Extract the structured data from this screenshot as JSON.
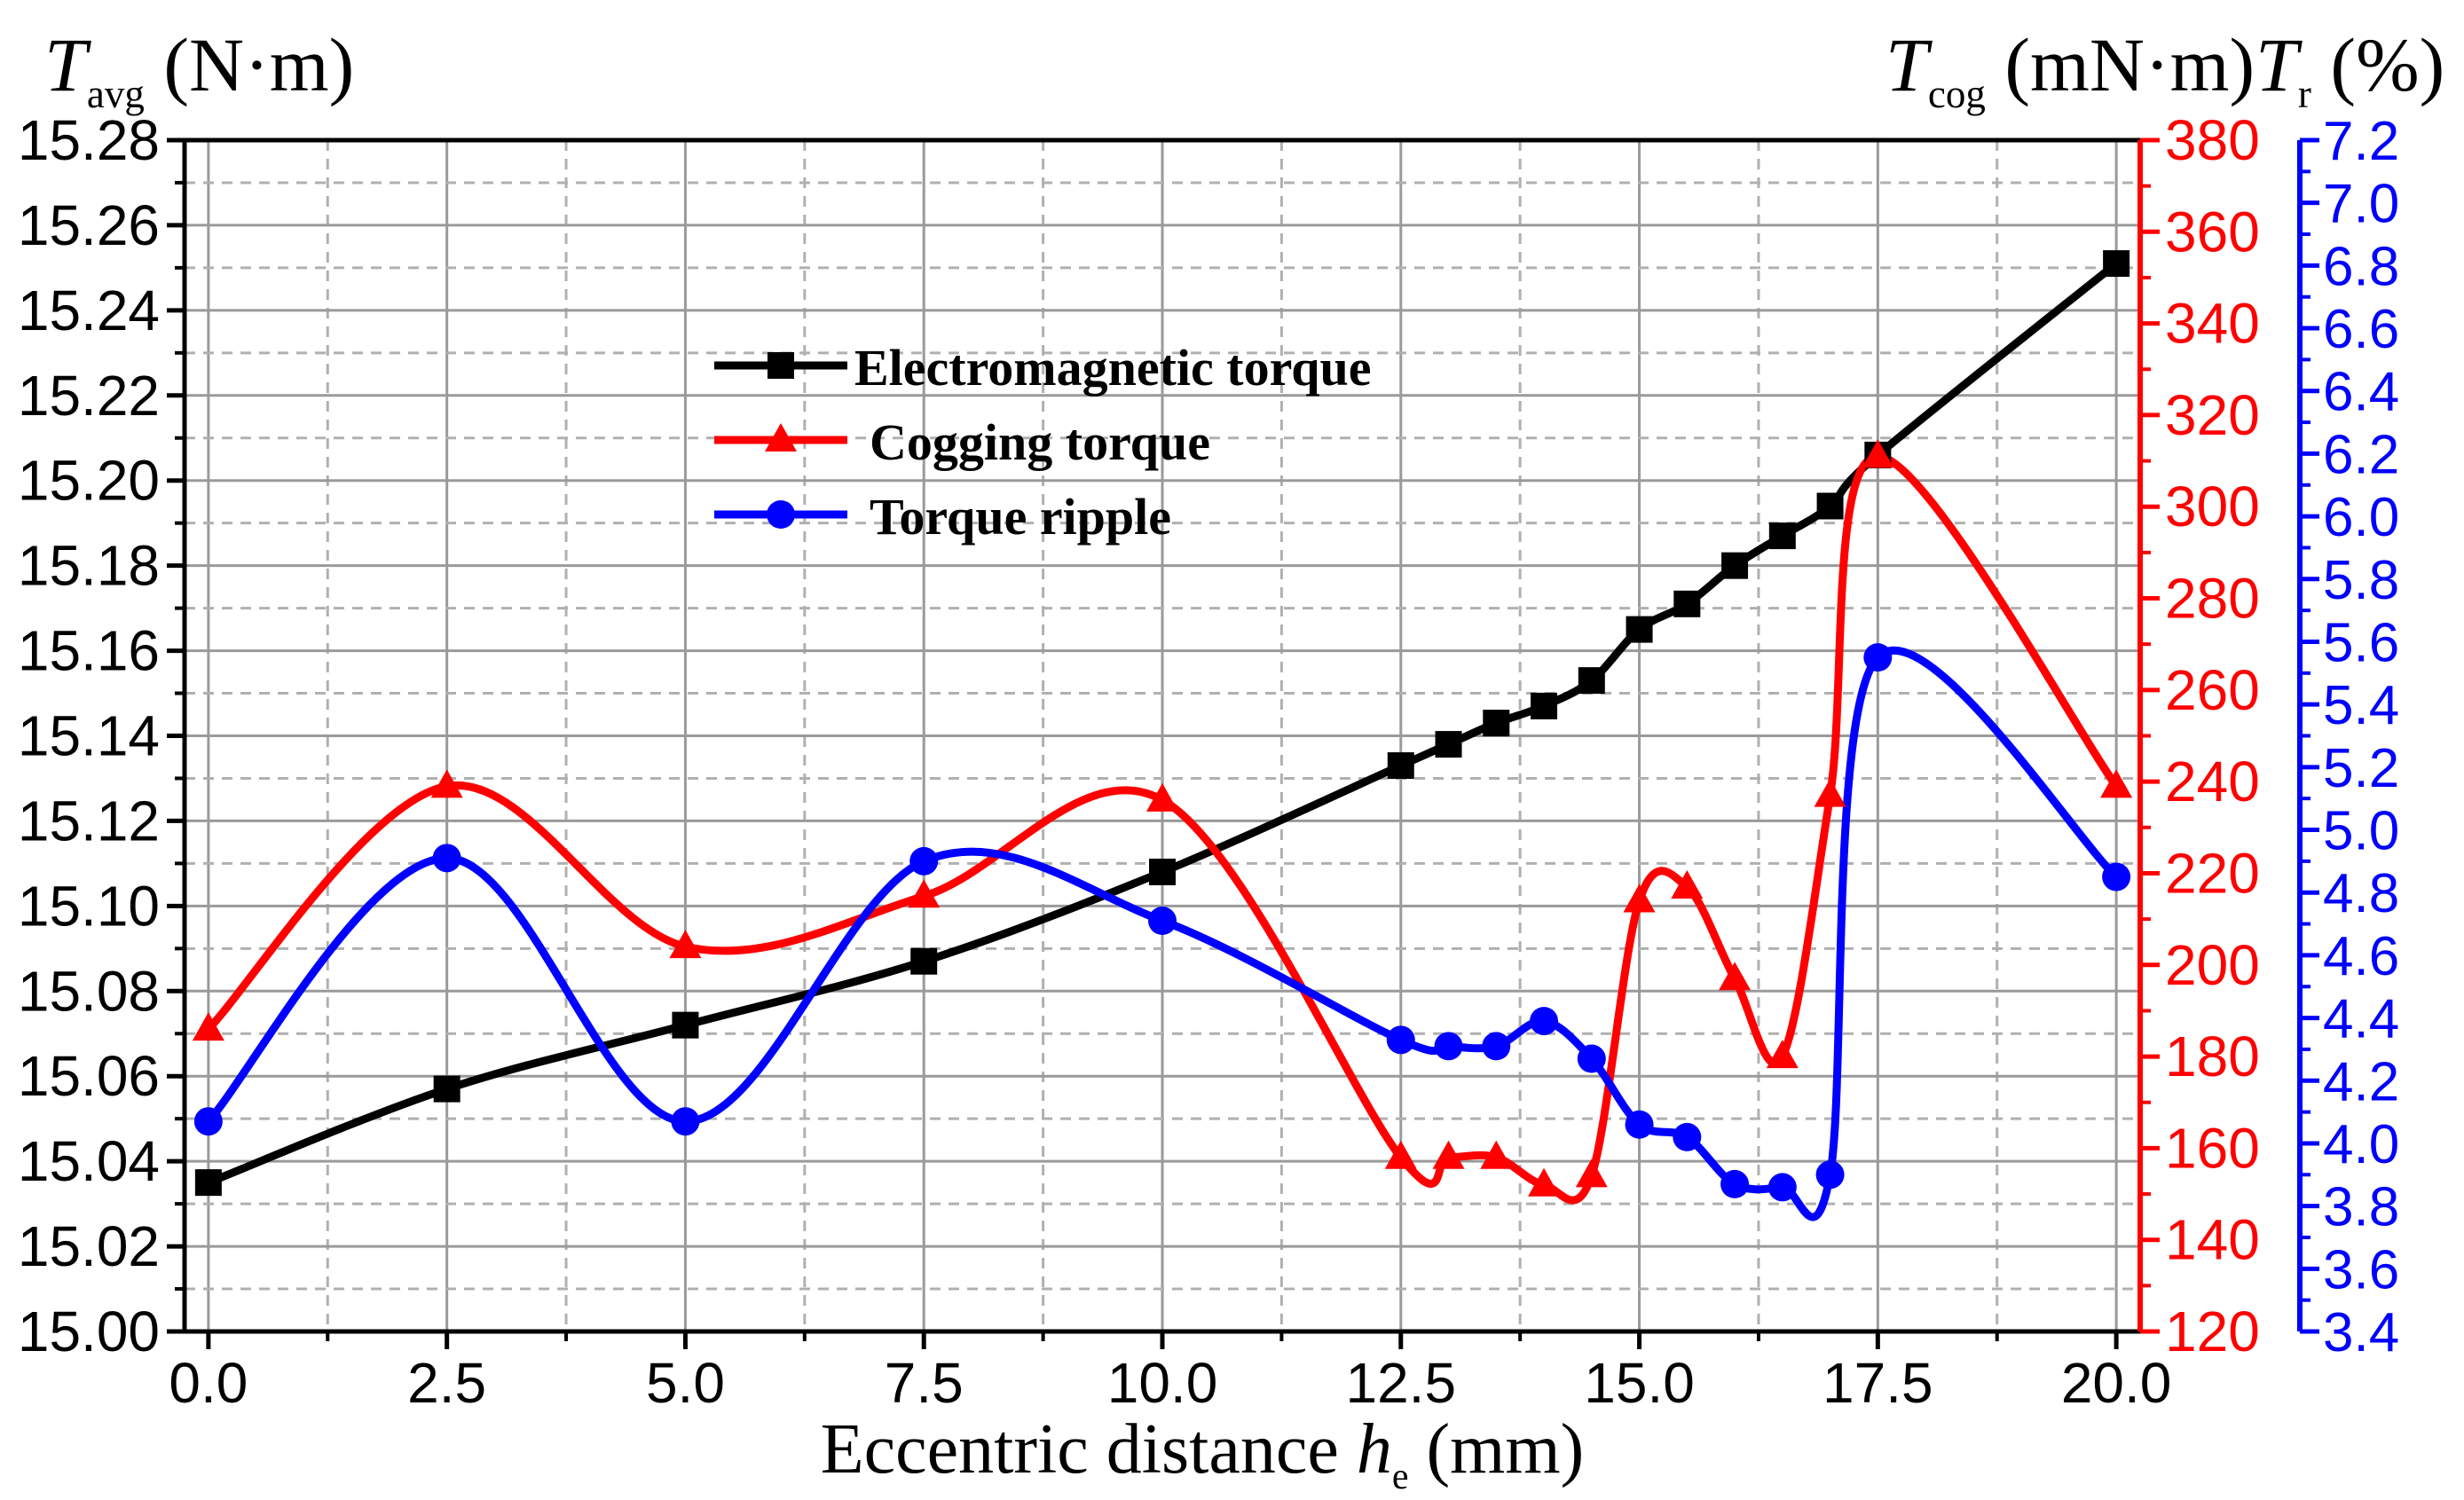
{
  "chart_data": {
    "type": "line",
    "xlabel": {
      "pre": "Eccentric   distance  ",
      "var": "h",
      "sub": "e",
      "post": " (mm)"
    },
    "x_ticks": [
      "0.0",
      "2.5",
      "5.0",
      "7.5",
      "10.0",
      "12.5",
      "15.0",
      "17.5",
      "20.0"
    ],
    "xlim": [
      -0.25,
      20.25
    ],
    "left_axis": {
      "label": {
        "var": "T",
        "sub": "avg",
        "post": " (N·m)"
      },
      "ylim": [
        15.0,
        15.28
      ],
      "ticks": [
        "15.00",
        "15.02",
        "15.04",
        "15.06",
        "15.08",
        "15.10",
        "15.12",
        "15.14",
        "15.16",
        "15.18",
        "15.20",
        "15.22",
        "15.24",
        "15.26",
        "15.28"
      ],
      "color": "#000000"
    },
    "right_axis_1": {
      "label": {
        "var": "T",
        "sub": "cog",
        "post": " (mN·m)"
      },
      "ylim": [
        120,
        380
      ],
      "ticks": [
        "120",
        "140",
        "160",
        "180",
        "200",
        "220",
        "240",
        "260",
        "280",
        "300",
        "320",
        "340",
        "360",
        "380"
      ],
      "color": "#ff0000"
    },
    "right_axis_2": {
      "label": {
        "var": "T",
        "sub": "r",
        "post": " (%)"
      },
      "ylim": [
        3.4,
        7.2
      ],
      "ticks": [
        "3.4",
        "3.6",
        "3.8",
        "4.0",
        "4.2",
        "4.4",
        "4.6",
        "4.8",
        "5.0",
        "5.2",
        "5.4",
        "5.6",
        "5.8",
        "6.0",
        "6.2",
        "6.4",
        "6.6",
        "6.8",
        "7.0",
        "7.2"
      ],
      "color": "#0000ff"
    },
    "grid": true,
    "legend_position": "upper-center",
    "series": [
      {
        "name": "Electromagnetic torque",
        "axis": "left",
        "color": "#000000",
        "marker": "square",
        "x": [
          0,
          2.5,
          5,
          7.5,
          10,
          12.5,
          13,
          13.5,
          14,
          14.5,
          15,
          15.5,
          16,
          16.5,
          17,
          17.5,
          20
        ],
        "y": [
          15.035,
          15.057,
          15.072,
          15.087,
          15.108,
          15.133,
          15.138,
          15.143,
          15.147,
          15.153,
          15.165,
          15.171,
          15.18,
          15.187,
          15.194,
          15.206,
          15.251
        ]
      },
      {
        "name": "Cogging torque",
        "axis": "right1",
        "color": "#ff0000",
        "marker": "triangle",
        "x": [
          0,
          2.5,
          5,
          7.5,
          10,
          12.5,
          13,
          13.5,
          14,
          14.5,
          15,
          15.5,
          16,
          16.5,
          17,
          17.5,
          20
        ],
        "y": [
          186,
          239,
          204,
          215,
          236,
          158,
          158,
          158,
          152,
          154,
          214,
          217,
          197,
          180,
          237,
          311,
          239
        ]
      },
      {
        "name": "Torque ripple",
        "axis": "right2",
        "color": "#0000ff",
        "marker": "circle",
        "x": [
          0,
          2.5,
          5,
          7.5,
          10,
          12.5,
          13,
          13.5,
          14,
          14.5,
          15,
          15.5,
          16,
          16.5,
          17,
          17.5,
          20
        ],
        "y": [
          4.07,
          4.91,
          4.07,
          4.9,
          4.71,
          4.33,
          4.31,
          4.31,
          4.39,
          4.27,
          4.06,
          4.02,
          3.87,
          3.86,
          3.9,
          5.55,
          4.85
        ]
      }
    ]
  }
}
